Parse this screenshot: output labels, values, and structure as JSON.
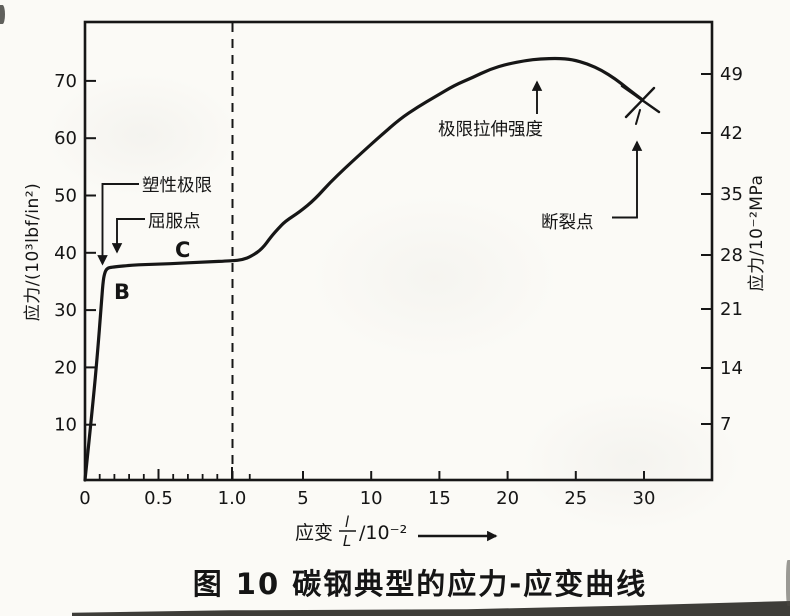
{
  "figure": {
    "caption": "图 10  碳钢典型的应力-应变曲线"
  },
  "axes": {
    "y_left": {
      "title": "应力/(10³lbf/in²)",
      "ticks": [
        70,
        60,
        50,
        40,
        30,
        20,
        10
      ]
    },
    "y_right": {
      "title": "应力/10⁻²MPa",
      "ticks": [
        49,
        42,
        35,
        28,
        21,
        14,
        7
      ]
    },
    "x": {
      "label_prefix": "应变",
      "frac_numerator": "l",
      "frac_denominator": "L",
      "label_suffix": "/10⁻²",
      "major_tick_labels": [
        "0",
        "0.5",
        "1.0",
        "5",
        "10",
        "15",
        "20",
        "25",
        "30"
      ],
      "major_tick_values": [
        0,
        0.5,
        1.0,
        5,
        10,
        15,
        20,
        25,
        30
      ],
      "minor_tick_values": [
        0.1,
        0.2,
        0.3,
        0.4,
        0.6,
        0.7,
        0.8,
        0.9,
        2
      ]
    }
  },
  "annotations": {
    "plastic_limit": {
      "label": "塑性极限"
    },
    "yield_point": {
      "label": "屈服点"
    },
    "point_b": {
      "label": "B"
    },
    "point_c": {
      "label": "C"
    },
    "uts": {
      "label": "极限拉伸强度"
    },
    "fracture": {
      "label": "断裂点"
    }
  },
  "colors": {
    "ink": "#161616",
    "paper": "#fbfaf6"
  },
  "chart_data": {
    "type": "line",
    "title": "图 10 碳钢典型的应力-应变曲线",
    "xlabel": "应变 l/L /10⁻²",
    "ylabel": "应力/(10³lbf/in²)",
    "ylabel_right": "应力/10⁻²MPa",
    "x_ticks": [
      0,
      0.5,
      1.0,
      5,
      10,
      15,
      20,
      25,
      30
    ],
    "y_ticks_left": [
      10,
      20,
      30,
      40,
      50,
      60,
      70
    ],
    "y_ticks_right": [
      7,
      14,
      21,
      28,
      35,
      42,
      49
    ],
    "xlim_note": "broken x-scale: 0–1.0 expanded, 1–35 compressed; dashed vertical line at strain = 1.0",
    "ylim_left": [
      0,
      80
    ],
    "grid": false,
    "legend": false,
    "series": [
      {
        "name": "碳钢应力-应变曲线",
        "points": [
          [
            0,
            0
          ],
          [
            0.05,
            12.2
          ],
          [
            0.09,
            23.5
          ],
          [
            0.11,
            30.5
          ],
          [
            0.122,
            34.3
          ],
          [
            0.133,
            36.1
          ],
          [
            0.15,
            36.9
          ],
          [
            0.18,
            37.1
          ],
          [
            0.34,
            37.5
          ],
          [
            0.58,
            37.7
          ],
          [
            0.82,
            38.0
          ],
          [
            1.0,
            38.2
          ],
          [
            1.6,
            38.4
          ],
          [
            2.1,
            39.0
          ],
          [
            2.7,
            40.3
          ],
          [
            3.2,
            42.4
          ],
          [
            3.6,
            43.8
          ],
          [
            4.0,
            45.1
          ],
          [
            4.8,
            46.7
          ],
          [
            5.9,
            49.0
          ],
          [
            7.0,
            51.9
          ],
          [
            8.1,
            54.4
          ],
          [
            9.2,
            56.8
          ],
          [
            10.6,
            59.8
          ],
          [
            12.1,
            62.9
          ],
          [
            13.4,
            65.0
          ],
          [
            14.7,
            66.8
          ],
          [
            16.1,
            68.8
          ],
          [
            17.4,
            70.1
          ],
          [
            18.7,
            71.6
          ],
          [
            20.0,
            72.5
          ],
          [
            21.3,
            73.1
          ],
          [
            22.4,
            73.4
          ],
          [
            23.7,
            73.5
          ],
          [
            24.7,
            73.3
          ],
          [
            25.9,
            72.5
          ],
          [
            26.9,
            71.4
          ],
          [
            27.9,
            69.9
          ],
          [
            28.8,
            68.2
          ],
          [
            29.8,
            66.4
          ]
        ]
      }
    ],
    "annotations": [
      {
        "label": "塑性极限",
        "points_to": [
          0.13,
          36.5
        ]
      },
      {
        "label": "屈服点",
        "points_to": [
          0.22,
          38.0
        ]
      },
      {
        "label": "B",
        "at": [
          0.2,
          33.5
        ]
      },
      {
        "label": "C",
        "at": [
          0.65,
          40.5
        ]
      },
      {
        "label": "极限拉伸强度",
        "points_to": [
          22.2,
          73.5
        ]
      },
      {
        "label": "断裂点",
        "points_to": [
          29.8,
          66.4
        ]
      }
    ]
  }
}
